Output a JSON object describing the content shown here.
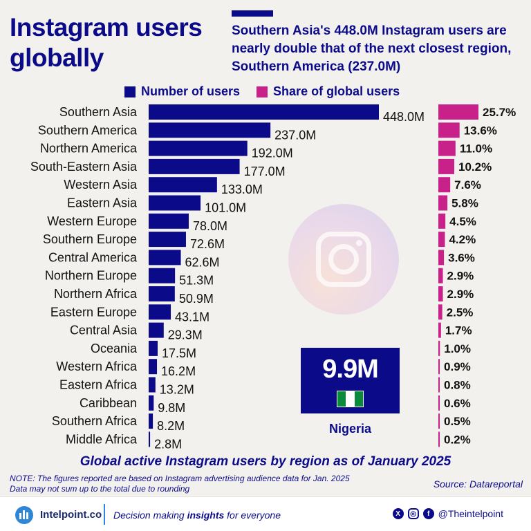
{
  "header": {
    "title": "Instagram users globally",
    "subtitle": "Southern Asia's 448.0M Instagram users are nearly double that of the next closest region, Southern America (237.0M)"
  },
  "colors": {
    "primary": "#0b0b8a",
    "accent": "#c8228a"
  },
  "chart_data": {
    "type": "bar",
    "orientation": "horizontal",
    "title": "Global active Instagram users by region as of January 2025",
    "categories": [
      "Southern Asia",
      "Southern America",
      "Northern America",
      "South-Eastern Asia",
      "Western Asia",
      "Eastern Asia",
      "Western Europe",
      "Southern Europe",
      "Central America",
      "Northern Europe",
      "Northern Africa",
      "Eastern Europe",
      "Central Asia",
      "Oceania",
      "Western Africa",
      "Eastern Africa",
      "Caribbean",
      "Southern Africa",
      "Middle Africa"
    ],
    "series": [
      {
        "name": "Number of users",
        "color": "#0b0b8a",
        "values": [
          448.0,
          237.0,
          192.0,
          177.0,
          133.0,
          101.0,
          78.0,
          72.6,
          62.6,
          51.3,
          50.9,
          43.1,
          29.3,
          17.5,
          16.2,
          13.2,
          9.8,
          8.2,
          2.8
        ],
        "labels": [
          "448.0M",
          "237.0M",
          "192.0M",
          "177.0M",
          "133.0M",
          "101.0M",
          "78.0M",
          "72.6M",
          "62.6M",
          "51.3M",
          "50.9M",
          "43.1M",
          "29.3M",
          "17.5M",
          "16.2M",
          "13.2M",
          "9.8M",
          "8.2M",
          "2.8M"
        ]
      },
      {
        "name": "Share of global users",
        "color": "#c8228a",
        "values": [
          25.7,
          13.6,
          11.0,
          10.2,
          7.6,
          5.8,
          4.5,
          4.2,
          3.6,
          2.9,
          2.9,
          2.5,
          1.7,
          1.0,
          0.9,
          0.8,
          0.6,
          0.5,
          0.2
        ],
        "labels": [
          "25.7%",
          "13.6%",
          "11.0%",
          "10.2%",
          "7.6%",
          "5.8%",
          "4.5%",
          "4.2%",
          "3.6%",
          "2.9%",
          "2.9%",
          "2.5%",
          "1.7%",
          "1.0%",
          "0.9%",
          "0.8%",
          "0.6%",
          "0.5%",
          "0.2%"
        ]
      }
    ],
    "legend": "top",
    "grid": false
  },
  "callout": {
    "value": "9.9M",
    "country": "Nigeria",
    "flag_colors": [
      "#0b8a3c",
      "#ffffff",
      "#0b8a3c"
    ]
  },
  "note": {
    "line1": "NOTE: The figures reported are based on Instagram advertising audience data for Jan. 2025",
    "line2": "Data may not sum up to the total due to rounding"
  },
  "source": "Source: Datareportal",
  "footer": {
    "brand": "Intelpoint.co",
    "tagline_pre": "Decision making ",
    "tagline_bold": "insights",
    "tagline_post": " for everyone",
    "social_icons": [
      "x-icon",
      "instagram-icon",
      "facebook-icon"
    ],
    "handle": "@Theintelpoint"
  }
}
